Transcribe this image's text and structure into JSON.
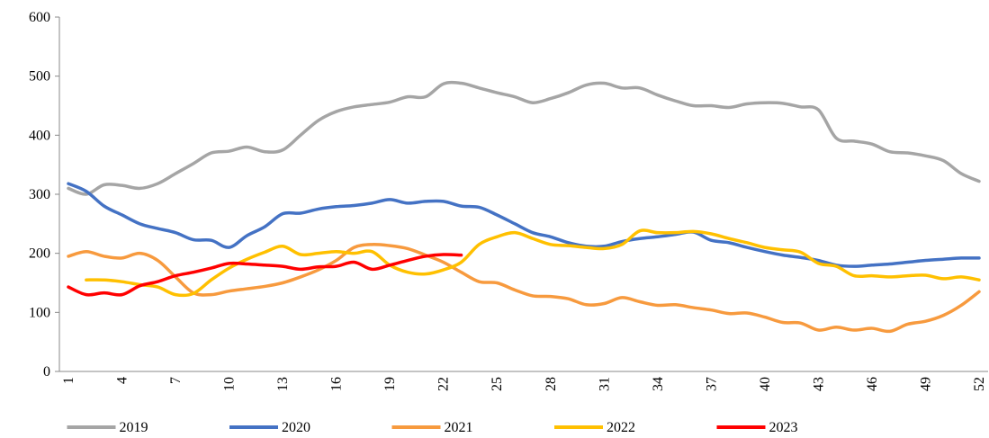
{
  "chart_data": {
    "type": "line",
    "categories": [
      "1",
      null,
      null,
      "4",
      null,
      null,
      "7",
      null,
      null,
      "10",
      null,
      null,
      "13",
      null,
      null,
      "16",
      null,
      null,
      "19",
      null,
      null,
      "22",
      null,
      null,
      "25",
      null,
      null,
      "28",
      null,
      null,
      "31",
      null,
      null,
      "34",
      null,
      null,
      "37",
      null,
      null,
      "40",
      null,
      null,
      "43",
      null,
      null,
      "46",
      null,
      null,
      "49",
      null,
      null,
      "52"
    ],
    "ylim": [
      0,
      600
    ],
    "yticks": [
      0,
      100,
      200,
      300,
      400,
      500,
      600
    ],
    "legend": "bottom",
    "series": [
      {
        "name": "2019",
        "color": "#a5a5a5",
        "values": [
          310,
          300,
          316,
          315,
          310,
          318,
          335,
          352,
          370,
          373,
          380,
          372,
          375,
          400,
          425,
          440,
          448,
          452,
          456,
          465,
          465,
          487,
          488,
          480,
          472,
          465,
          455,
          462,
          472,
          485,
          488,
          480,
          480,
          468,
          458,
          450,
          450,
          447,
          453,
          455,
          454,
          448,
          443,
          395,
          390,
          385,
          372,
          370,
          365,
          357,
          335,
          322
        ]
      },
      {
        "name": "2020",
        "color": "#4472c4",
        "values": [
          318,
          305,
          280,
          265,
          250,
          242,
          235,
          223,
          222,
          210,
          230,
          245,
          267,
          268,
          275,
          279,
          281,
          285,
          291,
          285,
          288,
          288,
          280,
          278,
          265,
          250,
          235,
          228,
          218,
          212,
          212,
          220,
          225,
          228,
          232,
          236,
          222,
          218,
          210,
          203,
          197,
          193,
          188,
          180,
          178,
          180,
          182,
          185,
          188,
          190,
          192,
          192
        ]
      },
      {
        "name": "2021",
        "color": "#f79a3e",
        "values": [
          195,
          203,
          195,
          192,
          200,
          188,
          160,
          133,
          130,
          136,
          140,
          144,
          150,
          160,
          172,
          188,
          210,
          215,
          213,
          208,
          197,
          185,
          168,
          152,
          150,
          138,
          128,
          127,
          123,
          113,
          115,
          125,
          118,
          112,
          113,
          108,
          104,
          98,
          99,
          92,
          83,
          82,
          70,
          75,
          70,
          73,
          68,
          80,
          85,
          95,
          112,
          135
        ]
      },
      {
        "name": "2022",
        "color": "#ffc000",
        "values": [
          null,
          155,
          155,
          152,
          147,
          143,
          130,
          132,
          155,
          175,
          190,
          202,
          212,
          198,
          200,
          203,
          200,
          203,
          180,
          168,
          165,
          172,
          185,
          215,
          228,
          235,
          225,
          215,
          213,
          210,
          208,
          215,
          238,
          235,
          235,
          237,
          233,
          225,
          218,
          210,
          206,
          202,
          183,
          178,
          162,
          162,
          160,
          162,
          163,
          157,
          160,
          155
        ]
      },
      {
        "name": "2023",
        "color": "#ff0000",
        "values": [
          143,
          130,
          133,
          130,
          145,
          152,
          162,
          168,
          175,
          183,
          182,
          180,
          178,
          173,
          177,
          178,
          185,
          173,
          180,
          188,
          195,
          198,
          197,
          null,
          null,
          null,
          null,
          null,
          null,
          null,
          null,
          null,
          null,
          null,
          null,
          null,
          null,
          null,
          null,
          null,
          null,
          null,
          null,
          null,
          null,
          null,
          null,
          null,
          null,
          null,
          null,
          null
        ]
      }
    ]
  }
}
